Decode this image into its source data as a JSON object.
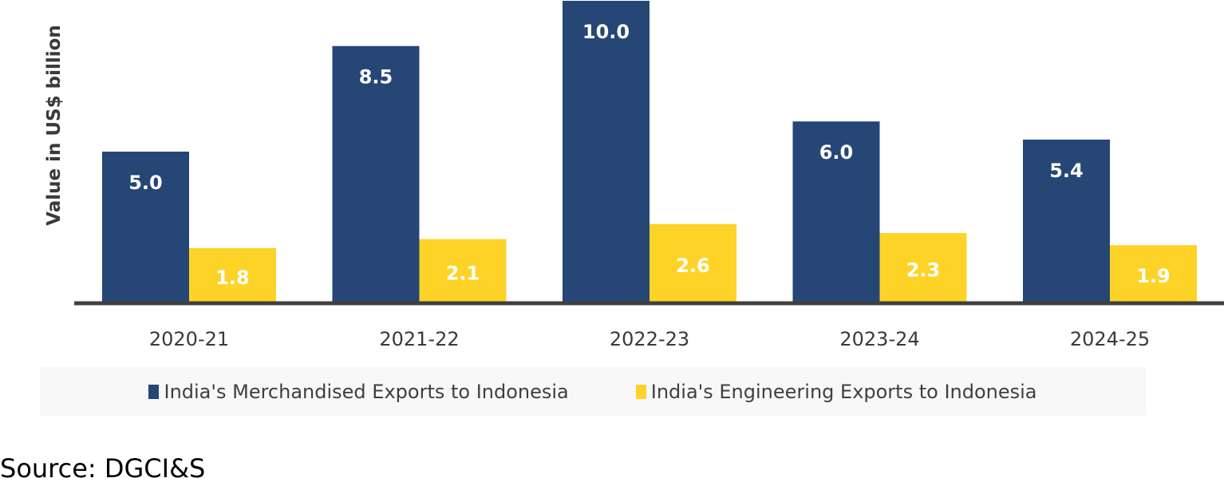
{
  "chart_data": {
    "type": "bar",
    "title": "",
    "xlabel": "",
    "ylabel": "Value in US$ billion",
    "ylim": [
      0,
      10
    ],
    "grid": false,
    "legend_position": "bottom",
    "categories": [
      "2020-21",
      "2021-22",
      "2022-23",
      "2023-24",
      "2024-25"
    ],
    "series": [
      {
        "name": "India's Merchandised Exports to Indonesia",
        "color": "#264675",
        "values": [
          5.0,
          8.5,
          10.0,
          6.0,
          5.4
        ],
        "labels": [
          "5.0",
          "8.5",
          "10.0",
          "6.0",
          "5.4"
        ]
      },
      {
        "name": "India's Engineering Exports to Indonesia",
        "color": "#FDD327",
        "values": [
          1.8,
          2.1,
          2.6,
          2.3,
          1.9
        ],
        "labels": [
          "1.8",
          "2.1",
          "2.6",
          "2.3",
          "1.9"
        ]
      }
    ]
  },
  "source": "Source: DGCI&S"
}
